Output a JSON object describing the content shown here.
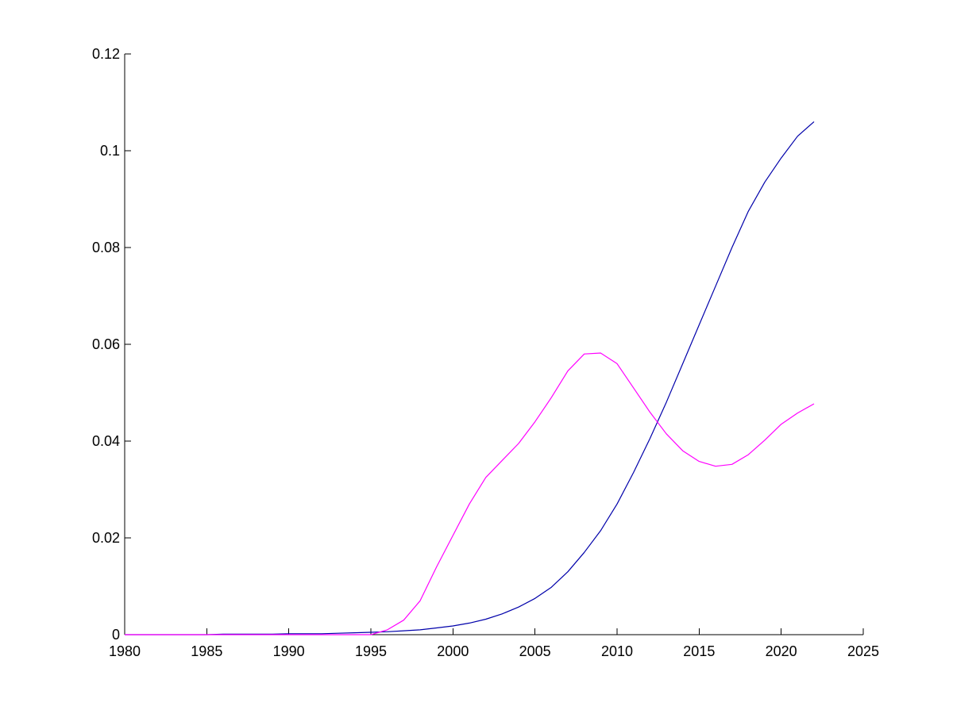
{
  "chart_data": {
    "type": "line",
    "title": "",
    "xlabel": "",
    "ylabel": "",
    "xlim": [
      1980,
      2025
    ],
    "ylim": [
      0,
      0.12
    ],
    "grid": false,
    "legend": "none",
    "x_ticks": [
      1980,
      1985,
      1990,
      1995,
      2000,
      2005,
      2010,
      2015,
      2020,
      2025
    ],
    "y_ticks": [
      0,
      0.02,
      0.04,
      0.06,
      0.08,
      0.1,
      0.12
    ],
    "x_tick_labels": [
      "1980",
      "1985",
      "1990",
      "1995",
      "2000",
      "2005",
      "2010",
      "2015",
      "2020",
      "2025"
    ],
    "y_tick_labels": [
      "0",
      "0.02",
      "0.04",
      "0.06",
      "0.08",
      "0.1",
      "0.12"
    ],
    "x": [
      1980,
      1981,
      1982,
      1983,
      1984,
      1985,
      1986,
      1987,
      1988,
      1989,
      1990,
      1991,
      1992,
      1993,
      1994,
      1995,
      1996,
      1997,
      1998,
      1999,
      2000,
      2001,
      2002,
      2003,
      2004,
      2005,
      2006,
      2007,
      2008,
      2009,
      2010,
      2011,
      2012,
      2013,
      2014,
      2015,
      2016,
      2017,
      2018,
      2019,
      2020,
      2021,
      2022
    ],
    "series": [
      {
        "color": "#0000aa",
        "values": [
          0,
          0,
          0,
          0,
          0,
          0,
          0.0001,
          0.0001,
          0.0001,
          0.0001,
          0.0002,
          0.0002,
          0.0002,
          0.0003,
          0.0004,
          0.0005,
          0.0006,
          0.0008,
          0.001,
          0.0014,
          0.0018,
          0.0024,
          0.0032,
          0.0043,
          0.0057,
          0.0075,
          0.0098,
          0.013,
          0.017,
          0.0215,
          0.027,
          0.0335,
          0.0405,
          0.048,
          0.056,
          0.064,
          0.072,
          0.08,
          0.0875,
          0.0935,
          0.0985,
          0.103,
          0.106
        ]
      },
      {
        "color": "#ff00ff",
        "values": [
          0,
          0,
          0,
          0,
          0,
          0,
          0,
          0,
          0,
          0,
          0,
          0,
          0,
          0,
          0,
          0.0,
          0.001,
          0.003,
          0.007,
          0.014,
          0.0205,
          0.027,
          0.0325,
          0.036,
          0.0395,
          0.044,
          0.049,
          0.0545,
          0.058,
          0.0582,
          0.056,
          0.051,
          0.046,
          0.0415,
          0.038,
          0.0358,
          0.0348,
          0.0352,
          0.0372,
          0.0402,
          0.0435,
          0.0458,
          0.0477
        ]
      }
    ]
  }
}
